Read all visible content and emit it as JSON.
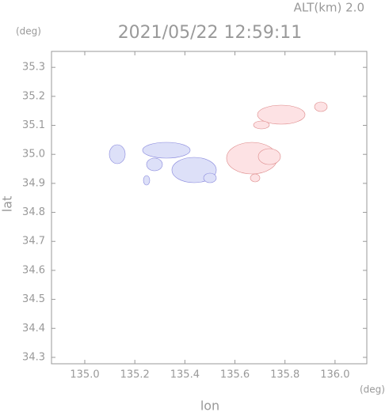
{
  "chart_data": {
    "type": "map",
    "title": "2021/05/22 12:59:11",
    "altitude_label": "ALT(km) 2.0",
    "xlabel": "lon",
    "ylabel": "lat",
    "xunit": "(deg)",
    "yunit": "(deg)",
    "xlim": [
      134.867,
      136.127
    ],
    "ylim": [
      34.278,
      35.355
    ],
    "xticks": [
      {
        "value": 135,
        "label": "135.0"
      },
      135.2,
      135.4,
      135.6,
      135.8,
      {
        "value": 136,
        "label": "136.0"
      }
    ],
    "yticks": [
      34.3,
      34.4,
      34.5,
      34.6,
      34.7,
      34.8,
      34.9,
      {
        "value": 35,
        "label": "35.0"
      },
      35.1,
      35.2,
      35.3
    ]
  }
}
